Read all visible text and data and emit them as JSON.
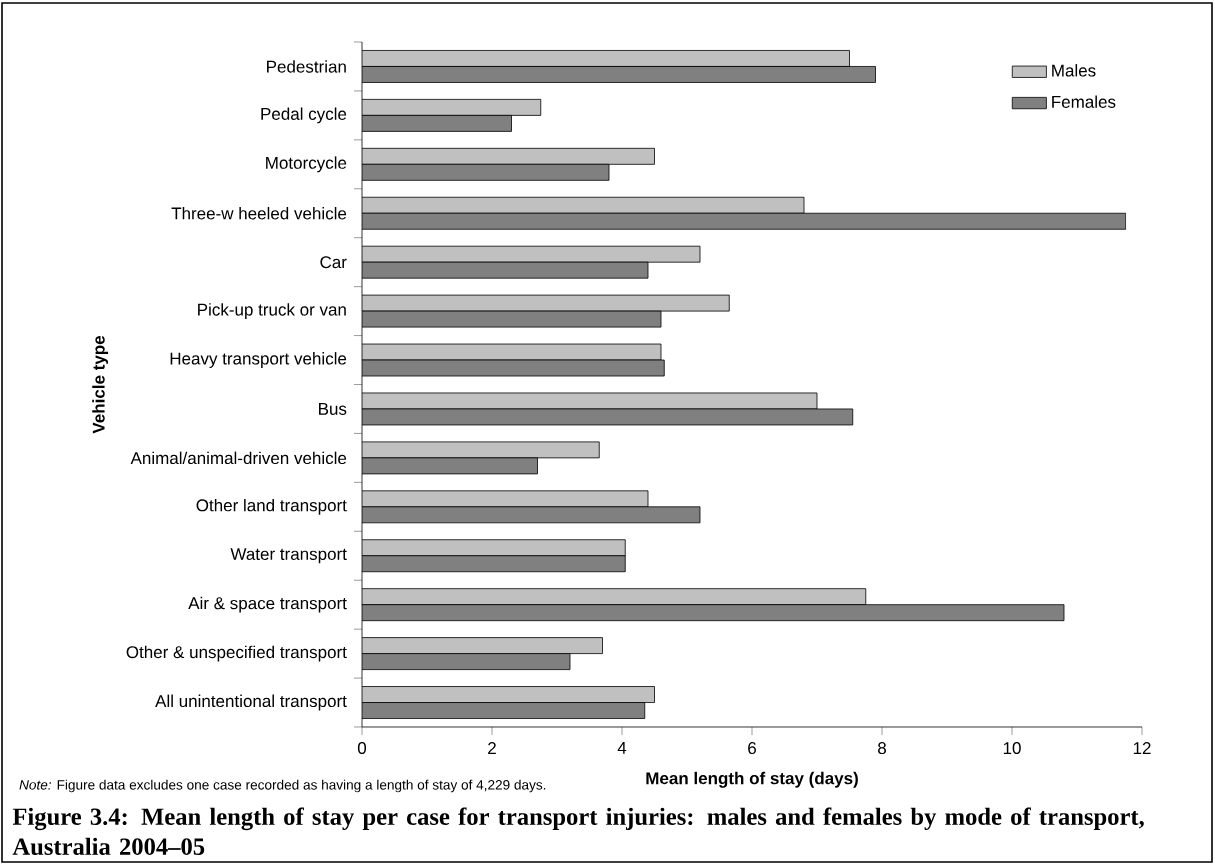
{
  "chart_data": {
    "type": "bar",
    "orientation": "horizontal",
    "title": "Figure 3.4: Mean length of stay per case for transport injuries: males and females by mode of transport, Australia 2004–05",
    "xlabel": "Mean length of stay (days)",
    "ylabel": "Vehicle type",
    "categories": [
      "Pedestrian",
      "Pedal cycle",
      "Motorcycle",
      "Three-w heeled vehicle",
      "Car",
      "Pick-up truck or van",
      "Heavy transport vehicle",
      "Bus",
      "Animal/animal-driven vehicle",
      "Other land transport",
      "Water transport",
      "Air & space transport",
      "Other & unspecified transport",
      "All unintentional transport"
    ],
    "series": [
      {
        "name": "Males",
        "color": "#c0c0c0",
        "values": [
          7.5,
          2.75,
          4.5,
          6.8,
          5.2,
          5.65,
          4.6,
          7.0,
          3.65,
          4.4,
          4.05,
          7.75,
          3.7,
          4.5
        ]
      },
      {
        "name": "Females",
        "color": "#808080",
        "values": [
          7.9,
          2.3,
          3.8,
          11.75,
          4.4,
          4.6,
          4.65,
          7.55,
          2.7,
          5.2,
          4.05,
          10.8,
          3.2,
          4.35
        ]
      }
    ],
    "xlim": [
      0,
      12
    ],
    "xticks": [
      0,
      2,
      4,
      6,
      8,
      10,
      12
    ],
    "legend": "top right",
    "annotations": [
      "*Note:* Figure data excludes one case recorded as having a length of stay of 4,229 days."
    ]
  }
}
